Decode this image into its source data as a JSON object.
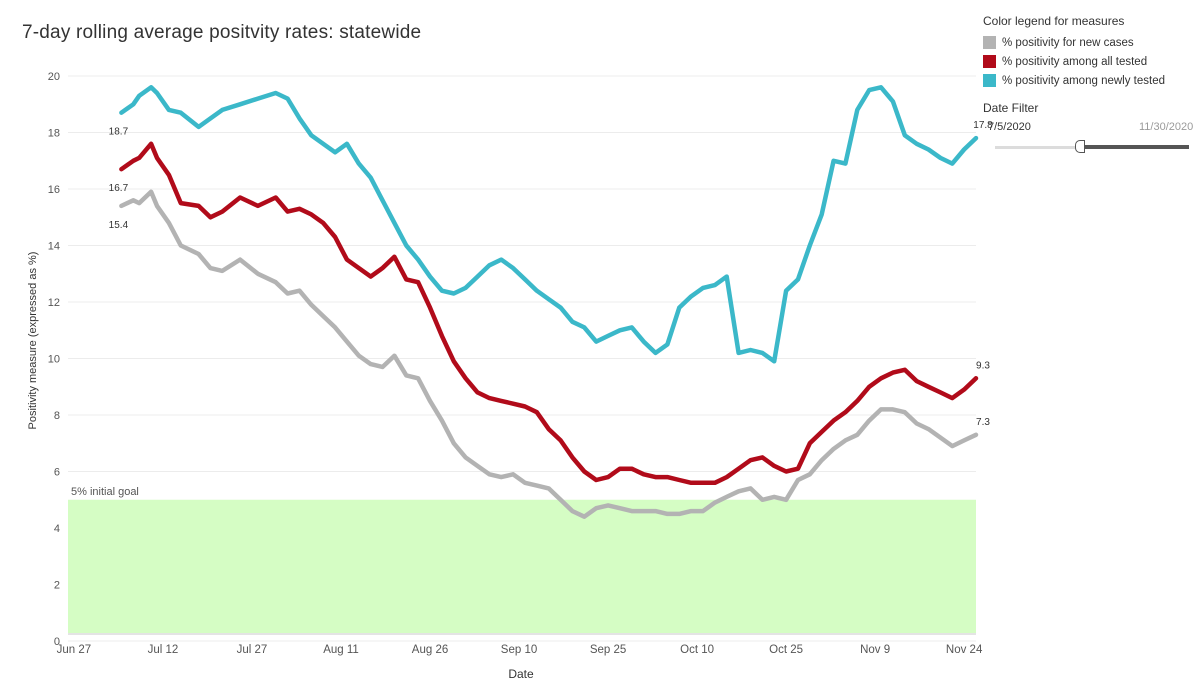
{
  "title": "7-day rolling average positvity rates: statewide",
  "legend": {
    "title": "Color legend for measures",
    "items": [
      {
        "label": "% positivity for new cases",
        "color": "#b3b3b3"
      },
      {
        "label": "% positivity among all tested",
        "color": "#b10b1a"
      },
      {
        "label": "% positivity among newly tested",
        "color": "#3bb8c9"
      }
    ]
  },
  "date_filter": {
    "title": "Date Filter",
    "start": "7/5/2020",
    "end": "11/30/2020"
  },
  "chart_data": {
    "type": "line",
    "xlabel": "Date",
    "ylabel": "Positivity measure (expressed as %)",
    "ylim": [
      0,
      20
    ],
    "yticks": [
      "0",
      "2",
      "4",
      "6",
      "8",
      "10",
      "12",
      "14",
      "16",
      "18",
      "20"
    ],
    "xlim_day": [
      -1,
      152
    ],
    "xticks": [
      {
        "label": "Jun 27",
        "day": 0
      },
      {
        "label": "Jul 12",
        "day": 15
      },
      {
        "label": "Jul 27",
        "day": 30
      },
      {
        "label": "Aug 11",
        "day": 45
      },
      {
        "label": "Aug 26",
        "day": 60
      },
      {
        "label": "Sep 10",
        "day": 75
      },
      {
        "label": "Sep 25",
        "day": 90
      },
      {
        "label": "Oct 10",
        "day": 105
      },
      {
        "label": "Oct 25",
        "day": 120
      },
      {
        "label": "Nov 9",
        "day": 135
      },
      {
        "label": "Nov 24",
        "day": 150
      }
    ],
    "goal": {
      "value": 5,
      "label": "5% initial goal",
      "color": "#d5fdc4"
    },
    "x_days": [
      8,
      10,
      11,
      13,
      14,
      16,
      18,
      21,
      23,
      25,
      28,
      31,
      34,
      36,
      38,
      40,
      42,
      44,
      46,
      48,
      50,
      52,
      54,
      56,
      58,
      60,
      62,
      64,
      66,
      68,
      70,
      72,
      74,
      76,
      78,
      80,
      82,
      84,
      86,
      88,
      90,
      92,
      94,
      96,
      98,
      100,
      102,
      104,
      106,
      108,
      110,
      112,
      114,
      116,
      118,
      120,
      122,
      124,
      126,
      128,
      130,
      132,
      134,
      136,
      138,
      140,
      142,
      144,
      146,
      148,
      150,
      152
    ],
    "series": [
      {
        "name": "% positivity for new cases",
        "color": "#b3b3b3",
        "start_label": "15.4",
        "end_label": "7.3",
        "values": [
          15.4,
          15.6,
          15.5,
          15.9,
          15.4,
          14.8,
          14.0,
          13.7,
          13.2,
          13.1,
          13.5,
          13.0,
          12.7,
          12.3,
          12.4,
          11.9,
          11.5,
          11.1,
          10.6,
          10.1,
          9.8,
          9.7,
          10.1,
          9.4,
          9.3,
          8.5,
          7.8,
          7.0,
          6.5,
          6.2,
          5.9,
          5.8,
          5.9,
          5.6,
          5.5,
          5.4,
          5.0,
          4.6,
          4.4,
          4.7,
          4.8,
          4.7,
          4.6,
          4.6,
          4.6,
          4.5,
          4.5,
          4.6,
          4.6,
          4.9,
          5.1,
          5.3,
          5.4,
          5.0,
          5.1,
          5.0,
          5.7,
          5.9,
          6.4,
          6.8,
          7.1,
          7.3,
          7.8,
          8.2,
          8.2,
          8.1,
          7.7,
          7.5,
          7.2,
          6.9,
          7.1,
          7.3
        ]
      },
      {
        "name": "% positivity among all tested",
        "color": "#b10b1a",
        "start_label": "16.7",
        "end_label": "9.3",
        "values": [
          16.7,
          17.0,
          17.1,
          17.6,
          17.1,
          16.5,
          15.5,
          15.4,
          15.0,
          15.2,
          15.7,
          15.4,
          15.7,
          15.2,
          15.3,
          15.1,
          14.8,
          14.3,
          13.5,
          13.2,
          12.9,
          13.2,
          13.6,
          12.8,
          12.7,
          11.8,
          10.8,
          9.9,
          9.3,
          8.8,
          8.6,
          8.5,
          8.4,
          8.3,
          8.1,
          7.5,
          7.1,
          6.5,
          6.0,
          5.7,
          5.8,
          6.1,
          6.1,
          5.9,
          5.8,
          5.8,
          5.7,
          5.6,
          5.6,
          5.6,
          5.8,
          6.1,
          6.4,
          6.5,
          6.2,
          6.0,
          6.1,
          7.0,
          7.4,
          7.8,
          8.1,
          8.5,
          9.0,
          9.3,
          9.5,
          9.6,
          9.2,
          9.0,
          8.8,
          8.6,
          8.9,
          9.3
        ]
      },
      {
        "name": "% positivity among newly tested",
        "color": "#3bb8c9",
        "start_label": "18.7",
        "end_label": "17.8",
        "values": [
          18.7,
          19.0,
          19.3,
          19.6,
          19.4,
          18.8,
          18.7,
          18.2,
          18.5,
          18.8,
          19.0,
          19.2,
          19.4,
          19.2,
          18.5,
          17.9,
          17.6,
          17.3,
          17.6,
          16.9,
          16.4,
          15.6,
          14.8,
          14.0,
          13.5,
          12.9,
          12.4,
          12.3,
          12.5,
          12.9,
          13.3,
          13.5,
          13.2,
          12.8,
          12.4,
          12.1,
          11.8,
          11.3,
          11.1,
          10.6,
          10.8,
          11.0,
          11.1,
          10.6,
          10.2,
          10.5,
          11.8,
          12.2,
          12.5,
          12.6,
          12.9,
          10.2,
          10.3,
          10.2,
          9.9,
          12.4,
          12.8,
          14.0,
          15.1,
          17.0,
          16.9,
          18.8,
          19.5,
          19.6,
          19.1,
          17.9,
          17.6,
          17.4,
          17.1,
          16.9,
          17.4,
          17.8
        ]
      }
    ]
  }
}
